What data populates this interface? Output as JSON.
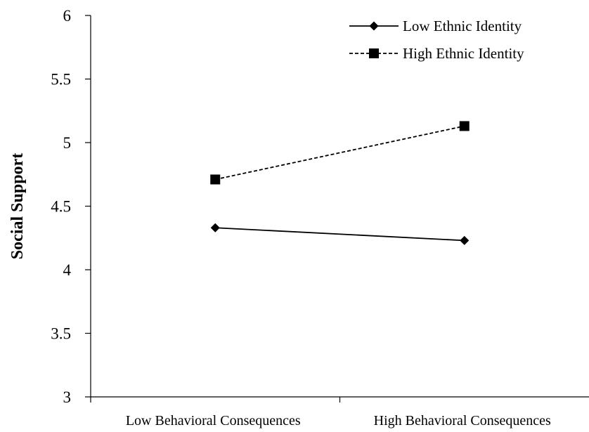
{
  "chart_data": {
    "type": "line",
    "title": "",
    "xlabel": "",
    "ylabel": "Social Support",
    "categories": [
      "Low Behavioral Consequences",
      "High Behavioral Consequences"
    ],
    "ylim": [
      3,
      6
    ],
    "yticks": [
      3,
      3.5,
      4,
      4.5,
      5,
      5.5,
      6
    ],
    "grid": false,
    "legend_position": "top-right",
    "series": [
      {
        "name": "Low Ethnic Identity",
        "values": [
          4.33,
          4.23
        ],
        "line": "solid",
        "marker": "diamond",
        "color": "#000000"
      },
      {
        "name": "High Ethnic Identity",
        "values": [
          4.71,
          5.13
        ],
        "line": "dashed",
        "marker": "square",
        "color": "#000000"
      }
    ]
  }
}
